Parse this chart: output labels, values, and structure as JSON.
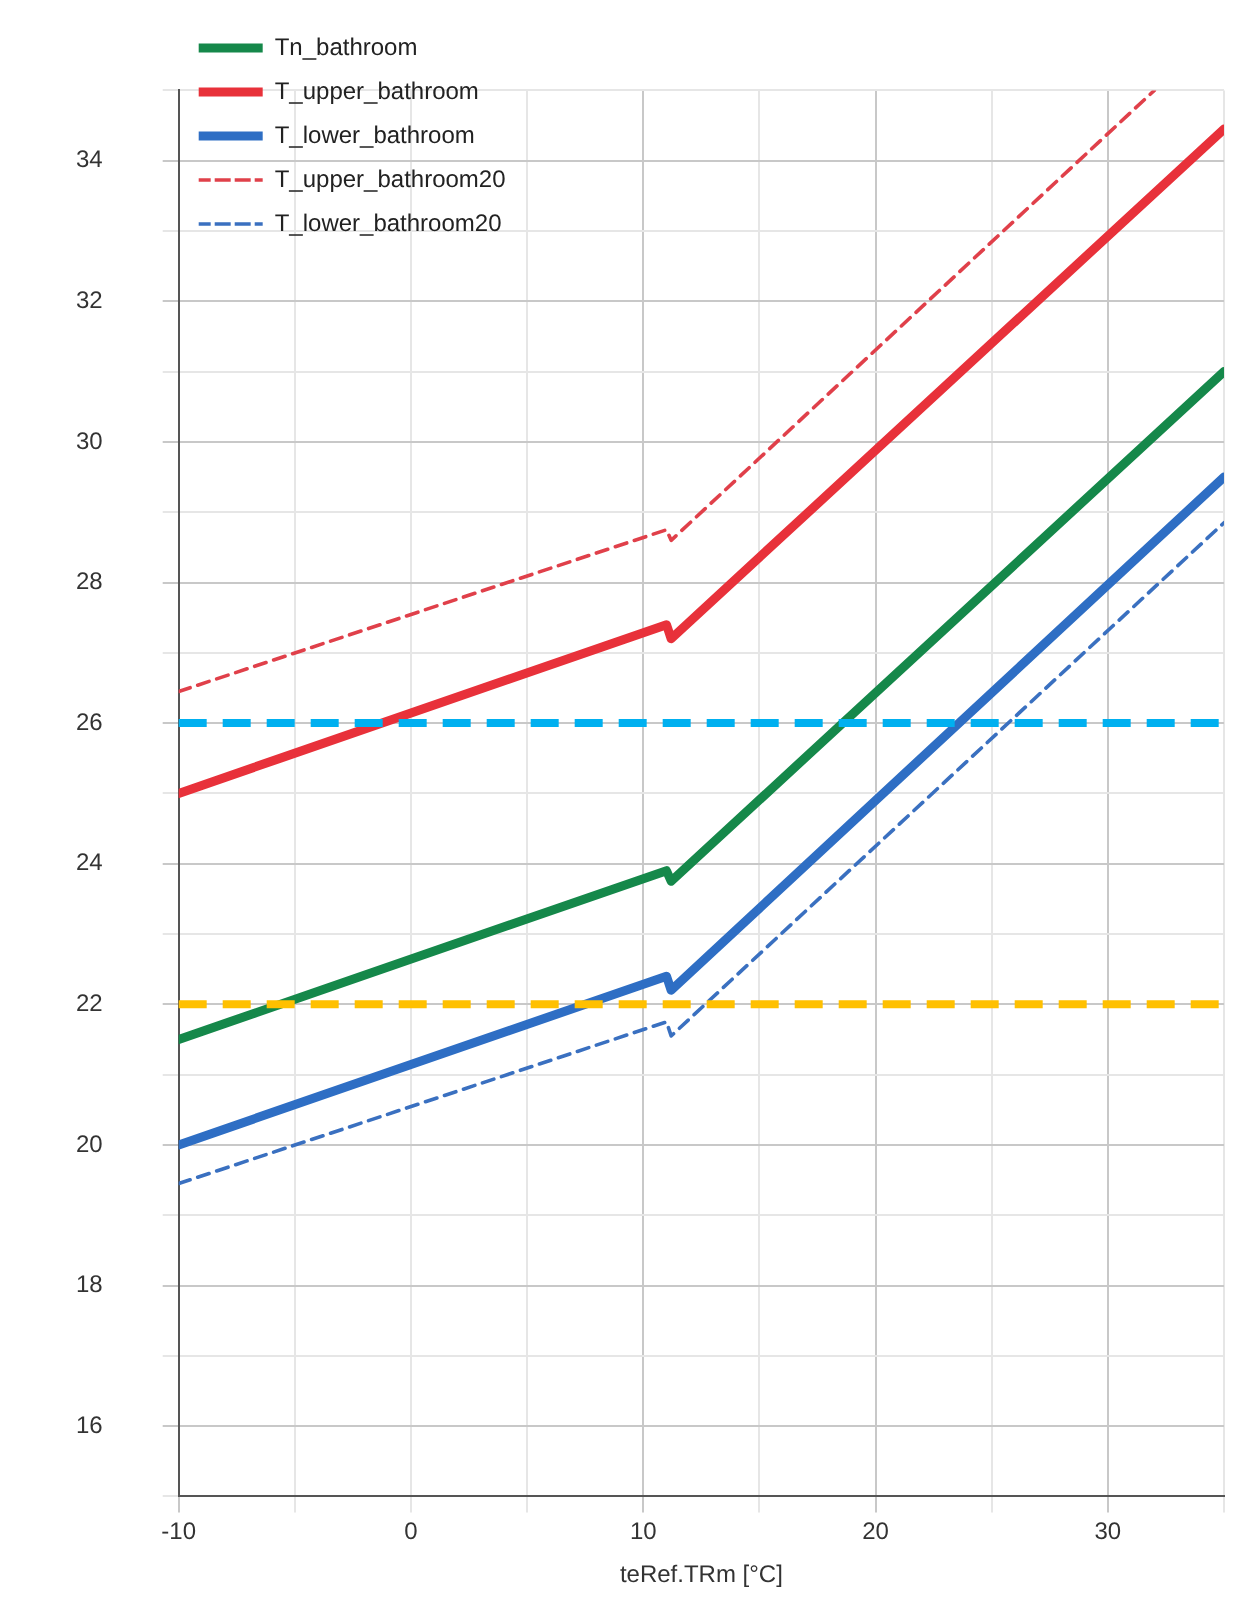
{
  "chart_data": {
    "type": "line",
    "xlabel": "teRef.TRm [°C]",
    "xlim": [
      -10,
      35
    ],
    "ylim": [
      15,
      35
    ],
    "xticks": [
      -10,
      {
        "value": -5,
        "label": null
      },
      0,
      {
        "value": 5,
        "label": null
      },
      10,
      {
        "value": 15,
        "label": null
      },
      20,
      {
        "value": 25,
        "label": null
      },
      30,
      {
        "value": 35,
        "label": null
      }
    ],
    "yticks": [
      {
        "value": 15,
        "label": null
      },
      16,
      {
        "value": 17,
        "label": null
      },
      18,
      {
        "value": 19,
        "label": null
      },
      20,
      {
        "value": 21,
        "label": null
      },
      22,
      {
        "value": 23,
        "label": null
      },
      24,
      {
        "value": 25,
        "label": null
      },
      26,
      {
        "value": 27,
        "label": null
      },
      28,
      {
        "value": 29,
        "label": null
      },
      30,
      {
        "value": 31,
        "label": null
      },
      32,
      {
        "value": 33,
        "label": null
      },
      34,
      {
        "value": 35,
        "label": null
      }
    ],
    "grid": true,
    "legend": "top left",
    "marker": "none",
    "series": [
      {
        "name": "Tn_bathroom",
        "color": "#15884a",
        "line_style": "solid",
        "x": [
          -10,
          11,
          11.2,
          35
        ],
        "values": [
          21.5,
          23.9,
          23.75,
          31
        ]
      },
      {
        "name": "T_upper_bathroom",
        "color": "#e8313a",
        "line_style": "solid",
        "x": [
          -10,
          11,
          11.2,
          35
        ],
        "values": [
          25,
          27.4,
          27.2,
          34.45
        ]
      },
      {
        "name": "T_lower_bathroom",
        "color": "#2e6ec4",
        "line_style": "solid",
        "x": [
          -10,
          11,
          11.2,
          35
        ],
        "values": [
          20,
          22.4,
          22.2,
          29.5
        ]
      },
      {
        "name": "T_upper_bathroom20",
        "color": "#e0404a",
        "line_style": "dashed",
        "x": [
          -10,
          11,
          11.2,
          32
        ],
        "values": [
          26.45,
          28.75,
          28.6,
          35
        ]
      },
      {
        "name": "T_lower_bathroom20",
        "color": "#3a70c0",
        "line_style": "dashed",
        "x": [
          -10,
          11,
          11.2,
          35
        ],
        "values": [
          19.45,
          21.75,
          21.55,
          28.85
        ]
      }
    ],
    "ref_lines": [
      {
        "axis": "y",
        "value": 26,
        "color": "#00b0f0",
        "line_style": "dashed"
      },
      {
        "axis": "y",
        "value": 22,
        "color": "#ffc000",
        "line_style": "dashed"
      }
    ]
  }
}
